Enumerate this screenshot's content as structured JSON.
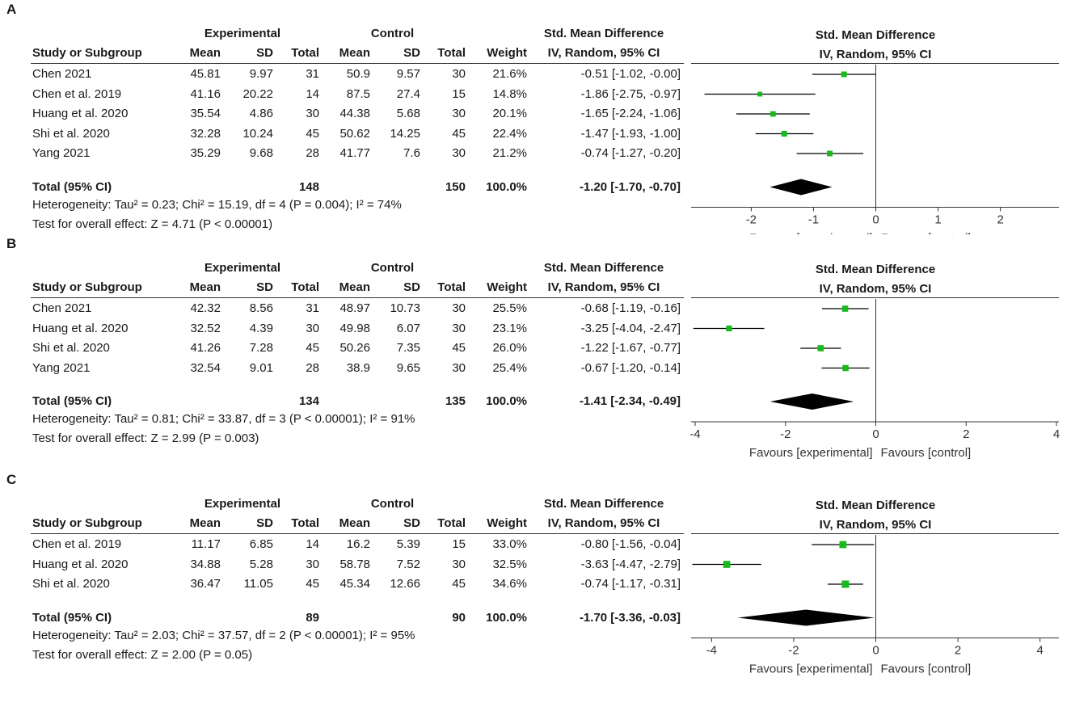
{
  "chart_data": [
    {
      "type": "forest",
      "panel_label": "A",
      "header": {
        "experimental": "Experimental",
        "control": "Control",
        "smd": "Std. Mean Difference",
        "study": "Study or Subgroup",
        "mean": "Mean",
        "sd": "SD",
        "total": "Total",
        "weight": "Weight",
        "method": "IV, Random, 95% CI"
      },
      "studies": [
        {
          "name": "Chen 2021",
          "e_mean": "45.81",
          "e_sd": "9.97",
          "e_total": "31",
          "c_mean": "50.9",
          "c_sd": "9.57",
          "c_total": "30",
          "weight": "21.6%",
          "ci_text": "-0.51 [-1.02, -0.00]",
          "est": -0.51,
          "lo": -1.02,
          "hi": -0.0,
          "w": 21.6
        },
        {
          "name": "Chen et al. 2019",
          "e_mean": "41.16",
          "e_sd": "20.22",
          "e_total": "14",
          "c_mean": "87.5",
          "c_sd": "27.4",
          "c_total": "15",
          "weight": "14.8%",
          "ci_text": "-1.86 [-2.75, -0.97]",
          "est": -1.86,
          "lo": -2.75,
          "hi": -0.97,
          "w": 14.8
        },
        {
          "name": "Huang et al. 2020",
          "e_mean": "35.54",
          "e_sd": "4.86",
          "e_total": "30",
          "c_mean": "44.38",
          "c_sd": "5.68",
          "c_total": "30",
          "weight": "20.1%",
          "ci_text": "-1.65 [-2.24, -1.06]",
          "est": -1.65,
          "lo": -2.24,
          "hi": -1.06,
          "w": 20.1
        },
        {
          "name": "Shi et al. 2020",
          "e_mean": "32.28",
          "e_sd": "10.24",
          "e_total": "45",
          "c_mean": "50.62",
          "c_sd": "14.25",
          "c_total": "45",
          "weight": "22.4%",
          "ci_text": "-1.47 [-1.93, -1.00]",
          "est": -1.47,
          "lo": -1.93,
          "hi": -1.0,
          "w": 22.4
        },
        {
          "name": "Yang 2021",
          "e_mean": "35.29",
          "e_sd": "9.68",
          "e_total": "28",
          "c_mean": "41.77",
          "c_sd": "7.6",
          "c_total": "30",
          "weight": "21.2%",
          "ci_text": "-0.74 [-1.27, -0.20]",
          "est": -0.74,
          "lo": -1.27,
          "hi": -0.2,
          "w": 21.2
        }
      ],
      "total": {
        "label": "Total (95% CI)",
        "e_total": "148",
        "c_total": "150",
        "weight": "100.0%",
        "ci_text": "-1.20 [-1.70, -0.70]",
        "est": -1.2,
        "lo": -1.7,
        "hi": -0.7
      },
      "heterogeneity": "Heterogeneity: Tau² = 0.23; Chi² = 15.19, df = 4 (P = 0.004); I² = 74%",
      "overall": "Test for overall effect: Z = 4.71 (P < 0.00001)",
      "xlim": [
        -2.9,
        2.9
      ],
      "xticks": [
        -2,
        -1,
        0,
        1,
        2
      ],
      "xtick_labels": [
        "-2",
        "-1",
        "0",
        "1",
        "2"
      ],
      "favours_left": "Favours [experimental]",
      "favours_right": "Favours [control]"
    },
    {
      "type": "forest",
      "panel_label": "B",
      "header": {
        "experimental": "Experimental",
        "control": "Control",
        "smd": "Std. Mean Difference",
        "study": "Study or Subgroup",
        "mean": "Mean",
        "sd": "SD",
        "total": "Total",
        "weight": "Weight",
        "method": "IV, Random, 95% CI"
      },
      "studies": [
        {
          "name": "Chen 2021",
          "e_mean": "42.32",
          "e_sd": "8.56",
          "e_total": "31",
          "c_mean": "48.97",
          "c_sd": "10.73",
          "c_total": "30",
          "weight": "25.5%",
          "ci_text": "-0.68 [-1.19, -0.16]",
          "est": -0.68,
          "lo": -1.19,
          "hi": -0.16,
          "w": 25.5
        },
        {
          "name": "Huang et al. 2020",
          "e_mean": "32.52",
          "e_sd": "4.39",
          "e_total": "30",
          "c_mean": "49.98",
          "c_sd": "6.07",
          "c_total": "30",
          "weight": "23.1%",
          "ci_text": "-3.25 [-4.04, -2.47]",
          "est": -3.25,
          "lo": -4.04,
          "hi": -2.47,
          "w": 23.1
        },
        {
          "name": "Shi et al. 2020",
          "e_mean": "41.26",
          "e_sd": "7.28",
          "e_total": "45",
          "c_mean": "50.26",
          "c_sd": "7.35",
          "c_total": "45",
          "weight": "26.0%",
          "ci_text": "-1.22 [-1.67, -0.77]",
          "est": -1.22,
          "lo": -1.67,
          "hi": -0.77,
          "w": 26.0
        },
        {
          "name": "Yang 2021",
          "e_mean": "32.54",
          "e_sd": "9.01",
          "e_total": "28",
          "c_mean": "38.9",
          "c_sd": "9.65",
          "c_total": "30",
          "weight": "25.4%",
          "ci_text": "-0.67 [-1.20, -0.14]",
          "est": -0.67,
          "lo": -1.2,
          "hi": -0.14,
          "w": 25.4
        }
      ],
      "total": {
        "label": "Total (95% CI)",
        "e_total": "134",
        "c_total": "135",
        "weight": "100.0%",
        "ci_text": "-1.41 [-2.34, -0.49]",
        "est": -1.41,
        "lo": -2.34,
        "hi": -0.49
      },
      "heterogeneity": "Heterogeneity: Tau² = 0.81; Chi² = 33.87, df = 3 (P < 0.00001); I² = 91%",
      "overall": "Test for overall effect: Z = 2.99 (P = 0.003)",
      "xlim": [
        -4,
        4
      ],
      "xticks": [
        -4,
        -2,
        0,
        2,
        4
      ],
      "xtick_labels": [
        "-4",
        "-2",
        "0",
        "2",
        "4"
      ],
      "favours_left": "Favours [experimental]",
      "favours_right": "Favours [control]"
    },
    {
      "type": "forest",
      "panel_label": "C",
      "header": {
        "experimental": "Experimental",
        "control": "Control",
        "smd": "Std. Mean Difference",
        "study": "Study or Subgroup",
        "mean": "Mean",
        "sd": "SD",
        "total": "Total",
        "weight": "Weight",
        "method": "IV, Random, 95% CI"
      },
      "studies": [
        {
          "name": "Chen et al. 2019",
          "e_mean": "11.17",
          "e_sd": "6.85",
          "e_total": "14",
          "c_mean": "16.2",
          "c_sd": "5.39",
          "c_total": "15",
          "weight": "33.0%",
          "ci_text": "-0.80 [-1.56, -0.04]",
          "est": -0.8,
          "lo": -1.56,
          "hi": -0.04,
          "w": 33.0
        },
        {
          "name": "Huang et al. 2020",
          "e_mean": "34.88",
          "e_sd": "5.28",
          "e_total": "30",
          "c_mean": "58.78",
          "c_sd": "7.52",
          "c_total": "30",
          "weight": "32.5%",
          "ci_text": "-3.63 [-4.47, -2.79]",
          "est": -3.63,
          "lo": -4.47,
          "hi": -2.79,
          "w": 32.5
        },
        {
          "name": "Shi et al. 2020",
          "e_mean": "36.47",
          "e_sd": "11.05",
          "e_total": "45",
          "c_mean": "45.34",
          "c_sd": "12.66",
          "c_total": "45",
          "weight": "34.6%",
          "ci_text": "-0.74 [-1.17, -0.31]",
          "est": -0.74,
          "lo": -1.17,
          "hi": -0.31,
          "w": 34.6
        }
      ],
      "total": {
        "label": "Total (95% CI)",
        "e_total": "89",
        "c_total": "90",
        "weight": "100.0%",
        "ci_text": "-1.70 [-3.36, -0.03]",
        "est": -1.7,
        "lo": -3.36,
        "hi": -0.03
      },
      "heterogeneity": "Heterogeneity: Tau² = 2.03; Chi² = 37.57, df = 2 (P < 0.00001); I² = 95%",
      "overall": "Test for overall effect: Z = 2.00 (P = 0.05)",
      "xlim": [
        -4.4,
        4.4
      ],
      "xticks": [
        -4,
        -2,
        0,
        2,
        4
      ],
      "xtick_labels": [
        "-4",
        "-2",
        "0",
        "2",
        "4"
      ],
      "favours_left": "Favours [experimental]",
      "favours_right": "Favours [control]"
    }
  ],
  "colors": {
    "marker": "#19b81e",
    "diamond": "#000000",
    "ci_line": "#000000",
    "axis": "#333333"
  }
}
